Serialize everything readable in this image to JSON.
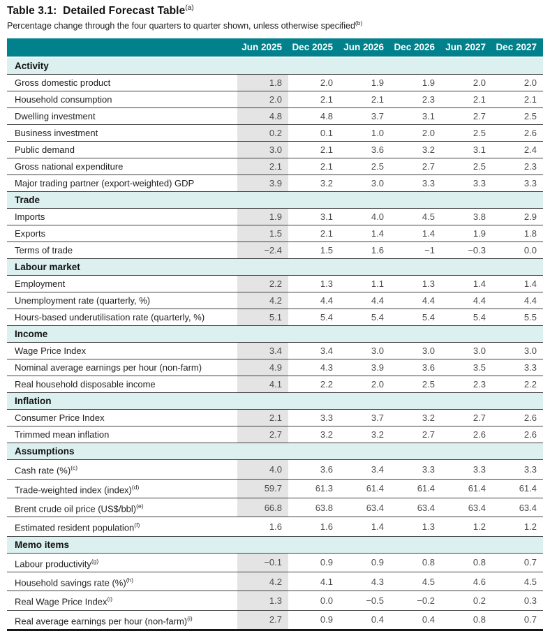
{
  "header": {
    "title": "Table 3.1:  Detailed Forecast Table",
    "title_sup": "(a)",
    "subtitle": "Percentage change through the four quarters to quarter shown, unless otherwise specified",
    "subtitle_sup": "(b)"
  },
  "columns": [
    "Jun 2025",
    "Dec 2025",
    "Jun 2026",
    "Dec 2026",
    "Jun 2027",
    "Dec 2027"
  ],
  "colors": {
    "header_teal": "#00818B",
    "section_bg": "#DCF0F0",
    "shaded_column": "#E4E4E4",
    "row_rule": "#3F3F3F"
  },
  "sections": [
    {
      "name": "Activity",
      "rows": [
        {
          "label": "Gross domestic product",
          "values": [
            "1.8",
            "2.0",
            "1.9",
            "1.9",
            "2.0",
            "2.0"
          ]
        },
        {
          "label": "Household consumption",
          "values": [
            "2.0",
            "2.1",
            "2.1",
            "2.3",
            "2.1",
            "2.1"
          ]
        },
        {
          "label": "Dwelling investment",
          "values": [
            "4.8",
            "4.8",
            "3.7",
            "3.1",
            "2.7",
            "2.5"
          ]
        },
        {
          "label": "Business investment",
          "values": [
            "0.2",
            "0.1",
            "1.0",
            "2.0",
            "2.5",
            "2.6"
          ]
        },
        {
          "label": "Public demand",
          "values": [
            "3.0",
            "2.1",
            "3.6",
            "3.2",
            "3.1",
            "2.4"
          ]
        },
        {
          "label": "Gross national expenditure",
          "values": [
            "2.1",
            "2.1",
            "2.5",
            "2.7",
            "2.5",
            "2.3"
          ]
        },
        {
          "label": "Major trading partner (export-weighted) GDP",
          "values": [
            "3.9",
            "3.2",
            "3.0",
            "3.3",
            "3.3",
            "3.3"
          ]
        }
      ]
    },
    {
      "name": "Trade",
      "rows": [
        {
          "label": "Imports",
          "values": [
            "1.9",
            "3.1",
            "4.0",
            "4.5",
            "3.8",
            "2.9"
          ]
        },
        {
          "label": "Exports",
          "values": [
            "1.5",
            "2.1",
            "1.4",
            "1.4",
            "1.9",
            "1.8"
          ]
        },
        {
          "label": "Terms of trade",
          "values": [
            "−2.4",
            "1.5",
            "1.6",
            "−1",
            "−0.3",
            "0.0"
          ]
        }
      ]
    },
    {
      "name": "Labour market",
      "rows": [
        {
          "label": "Employment",
          "values": [
            "2.2",
            "1.3",
            "1.1",
            "1.3",
            "1.4",
            "1.4"
          ]
        },
        {
          "label": "Unemployment rate (quarterly, %)",
          "values": [
            "4.2",
            "4.4",
            "4.4",
            "4.4",
            "4.4",
            "4.4"
          ]
        },
        {
          "label": "Hours-based underutilisation rate (quarterly, %)",
          "values": [
            "5.1",
            "5.4",
            "5.4",
            "5.4",
            "5.4",
            "5.5"
          ]
        }
      ]
    },
    {
      "name": "Income",
      "rows": [
        {
          "label": "Wage Price Index",
          "values": [
            "3.4",
            "3.4",
            "3.0",
            "3.0",
            "3.0",
            "3.0"
          ]
        },
        {
          "label": "Nominal average earnings per hour (non-farm)",
          "values": [
            "4.9",
            "4.3",
            "3.9",
            "3.6",
            "3.5",
            "3.3"
          ]
        },
        {
          "label": "Real household disposable income",
          "values": [
            "4.1",
            "2.2",
            "2.0",
            "2.5",
            "2.3",
            "2.2"
          ]
        }
      ]
    },
    {
      "name": "Inflation",
      "rows": [
        {
          "label": "Consumer Price Index",
          "values": [
            "2.1",
            "3.3",
            "3.7",
            "3.2",
            "2.7",
            "2.6"
          ]
        },
        {
          "label": "Trimmed mean inflation",
          "values": [
            "2.7",
            "3.2",
            "3.2",
            "2.7",
            "2.6",
            "2.6"
          ]
        }
      ]
    },
    {
      "name": "Assumptions",
      "rows": [
        {
          "label": "Cash rate (%)",
          "sup": "(c)",
          "values": [
            "4.0",
            "3.6",
            "3.4",
            "3.3",
            "3.3",
            "3.3"
          ]
        },
        {
          "label": "Trade-weighted index (index)",
          "sup": "(d)",
          "values": [
            "59.7",
            "61.3",
            "61.4",
            "61.4",
            "61.4",
            "61.4"
          ]
        },
        {
          "label": "Brent crude oil price (US$/bbl)",
          "sup": "(e)",
          "values": [
            "66.8",
            "63.8",
            "63.4",
            "63.4",
            "63.4",
            "63.4"
          ]
        },
        {
          "label": "Estimated resident population",
          "sup": "(f)",
          "first_shaded": false,
          "values": [
            "1.6",
            "1.6",
            "1.4",
            "1.3",
            "1.2",
            "1.2"
          ]
        }
      ]
    },
    {
      "name": "Memo items",
      "rows": [
        {
          "label": "Labour productivity",
          "sup": "(g)",
          "values": [
            "−0.1",
            "0.9",
            "0.9",
            "0.8",
            "0.8",
            "0.7"
          ]
        },
        {
          "label": "Household savings rate (%)",
          "sup": "(h)",
          "values": [
            "4.2",
            "4.1",
            "4.3",
            "4.5",
            "4.6",
            "4.5"
          ]
        },
        {
          "label": "Real Wage Price Index",
          "sup": "(i)",
          "values": [
            "1.3",
            "0.0",
            "−0.5",
            "−0.2",
            "0.2",
            "0.3"
          ]
        },
        {
          "label": "Real average earnings per hour (non-farm)",
          "sup": "(i)",
          "values": [
            "2.7",
            "0.9",
            "0.4",
            "0.4",
            "0.8",
            "0.7"
          ]
        }
      ]
    }
  ]
}
